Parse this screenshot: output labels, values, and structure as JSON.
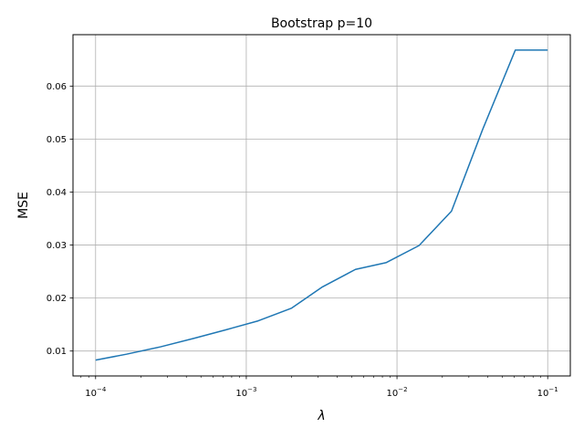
{
  "chart_data": {
    "type": "line",
    "title": "Bootstrap p=10",
    "xlabel": "λ",
    "ylabel": "MSE",
    "xscale": "log",
    "xlim": [
      7.079e-05,
      0.1413
    ],
    "ylim": [
      0.0053,
      0.0697
    ],
    "grid": true,
    "x_ticks": [
      {
        "value": 0.0001,
        "base": "10",
        "exp": "−4"
      },
      {
        "value": 0.001,
        "base": "10",
        "exp": "−3"
      },
      {
        "value": 0.01,
        "base": "10",
        "exp": "−2"
      },
      {
        "value": 0.1,
        "base": "10",
        "exp": "−1"
      }
    ],
    "y_ticks": [
      {
        "value": 0.01,
        "label": "0.01"
      },
      {
        "value": 0.02,
        "label": "0.02"
      },
      {
        "value": 0.03,
        "label": "0.03"
      },
      {
        "value": 0.04,
        "label": "0.04"
      },
      {
        "value": 0.05,
        "label": "0.05"
      },
      {
        "value": 0.06,
        "label": "0.06"
      }
    ],
    "series": [
      {
        "color": "#1f77b4",
        "x": [
          0.0001,
          0.00016,
          0.00027,
          0.00045,
          0.00073,
          0.0012,
          0.002,
          0.0032,
          0.0053,
          0.0085,
          0.014,
          0.023,
          0.037,
          0.061,
          0.1
        ],
        "y": [
          0.0083,
          0.0094,
          0.0108,
          0.0124,
          0.014,
          0.0157,
          0.0181,
          0.0221,
          0.0254,
          0.0267,
          0.0299,
          0.0364,
          0.0518,
          0.0668,
          0.0668
        ]
      }
    ]
  }
}
